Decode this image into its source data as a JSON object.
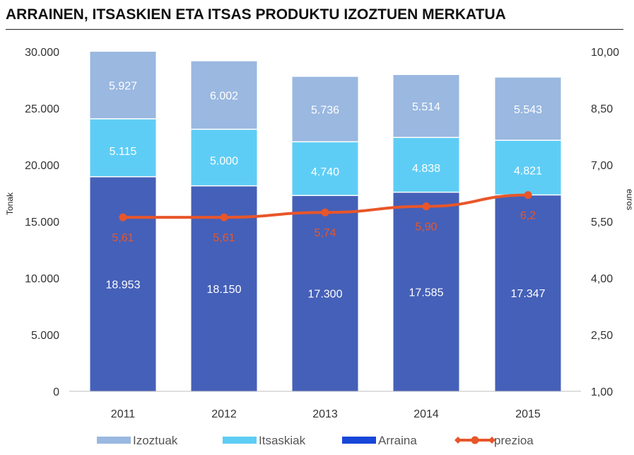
{
  "title": "ARRAINEN, ITSASKIEN ETA ITSAS PRODUKTU IZOZTUEN MERKATUA",
  "colors": {
    "Arraina": "#4560b8",
    "Itsaskiak": "#5ecdf5",
    "Izoztuak": "#9ab8e0",
    "prezioa": "#e8562a"
  },
  "legend_swatch_colors": {
    "Arraina": "#1746d8",
    "Itsaskiak": "#5ecdf5",
    "Izoztuak": "#9ab8e0",
    "prezioa": "#e8562a"
  },
  "chart_data": {
    "type": "bar",
    "stacked": true,
    "categories": [
      "2011",
      "2012",
      "2013",
      "2014",
      "2015"
    ],
    "series": [
      {
        "name": "Arraina",
        "values": [
          18953,
          18150,
          17300,
          17585,
          17347
        ],
        "labels": [
          "18.953",
          "18.150",
          "17.300",
          "17.585",
          "17.347"
        ]
      },
      {
        "name": "Itsaskiak",
        "values": [
          5115,
          5000,
          4740,
          4838,
          4821
        ],
        "labels": [
          "5.115",
          "5.000",
          "4.740",
          "4.838",
          "4.821"
        ]
      },
      {
        "name": "Izoztuak",
        "values": [
          5927,
          6002,
          5736,
          5514,
          5543
        ],
        "labels": [
          "5.927",
          "6.002",
          "5.736",
          "5.514",
          "5.543"
        ]
      }
    ],
    "line_series": {
      "name": "prezioa",
      "axis": "right",
      "values": [
        5.61,
        5.61,
        5.74,
        5.9,
        6.2
      ],
      "labels": [
        "5,61",
        "5,61",
        "5,74",
        "5,90",
        "6,2"
      ]
    },
    "ylabel": "Tonak",
    "y2label": "euros",
    "ylim": [
      0,
      30000
    ],
    "y2lim": [
      1.0,
      10.0
    ],
    "yticks": [
      "0",
      "5.000",
      "10.000",
      "15.000",
      "20.000",
      "25.000",
      "30.000"
    ],
    "y2ticks": [
      "1,00",
      "2,50",
      "4,00",
      "5,50",
      "7,00",
      "8,50",
      "10,00"
    ],
    "legend_order": [
      "Izoztuak",
      "Itsaskiak",
      "Arraina",
      "prezioa"
    ],
    "legend_position": "bottom",
    "grid": false
  }
}
